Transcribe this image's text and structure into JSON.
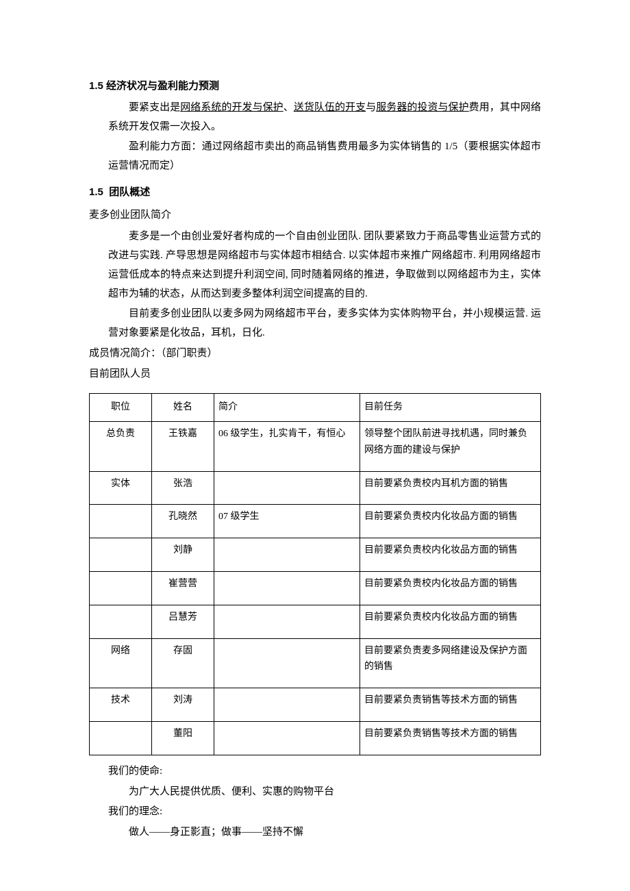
{
  "section1": {
    "heading_num": "1.5",
    "heading_text": "经济状况与盈利能力预测",
    "p1_pre": "要紧支出是",
    "p1_u1": "网络系统的开发与保护",
    "p1_sep1": "、",
    "p1_u2": "送货队伍的开支",
    "p1_sep2": "与",
    "p1_u3": "服务器的投资与保护",
    "p1_post": "费用，其中网络系统开发仅需一次投入。",
    "p2": "盈利能力方面：通过网络超市卖出的商品销售费用最多为实体销售的 1/5（要根据实体超市运营情况而定）"
  },
  "section2": {
    "heading_num": "1.5",
    "heading_text": "团队概述",
    "intro_label": "麦多创业团队简介",
    "p1": "麦多是一个由创业爱好者构成的一个自由创业团队. 团队要紧致力于商品零售业运营方式的改进与实践. 产导思想是网络超市与实体超市相结合. 以实体超市来推广网络超市. 利用网络超市运营低成本的特点来达到提升利润空间, 同时随着网络的推进，争取做到以网络超市为主，实体超市为辅的状态，从而达到麦多整体利润空间提高的目的.",
    "p2": "目前麦多创业团队以麦多网为网络超市平台，麦多实体为实体购物平台，并小规模运营. 运营对象要紧是化妆品，耳机，日化.",
    "member_label": "成员情况简介：（部门职责）",
    "team_label": "目前团队人员"
  },
  "table": {
    "headers": {
      "c1": "职位",
      "c2": "姓名",
      "c3": "简介",
      "c4": "目前任务"
    },
    "rows": [
      {
        "pos": "总负责",
        "name": "王铁嘉",
        "brief": "06 级学生，扎实肯干，有恒心",
        "task": "领导整个团队前进寻找机遇，同时兼负网络方面的建设与保护"
      },
      {
        "pos": "实体",
        "name": "张浩",
        "brief": "",
        "task": "目前要紧负责校内耳机方面的销售"
      },
      {
        "pos": "",
        "name": "孔晓然",
        "brief": "07 级学生",
        "task": "目前要紧负责校内化妆品方面的销售"
      },
      {
        "pos": "",
        "name": "刘静",
        "brief": "",
        "task": "目前要紧负责校内化妆品方面的销售"
      },
      {
        "pos": "",
        "name": "崔营营",
        "brief": "",
        "task": "目前要紧负责校内化妆品方面的销售"
      },
      {
        "pos": "",
        "name": "吕慧芳",
        "brief": "",
        "task": "目前要紧负责校内化妆品方面的销售"
      },
      {
        "pos": "网络",
        "name": "存固",
        "brief": "",
        "task": "目前要紧负责麦多网络建设及保护方面的销售"
      },
      {
        "pos": "技术",
        "name": "刘涛",
        "brief": "",
        "task": "目前要紧负责销售等技术方面的销售"
      },
      {
        "pos": "",
        "name": "董阳",
        "brief": "",
        "task": "目前要紧负责销售等技术方面的销售"
      }
    ]
  },
  "mission": {
    "l1": "我们的使命:",
    "l2": "为广大人民提供优质、便利、实惠的购物平台",
    "l3": "我们的理念:",
    "l4": "做人——身正影直；做事——坚持不懈"
  }
}
